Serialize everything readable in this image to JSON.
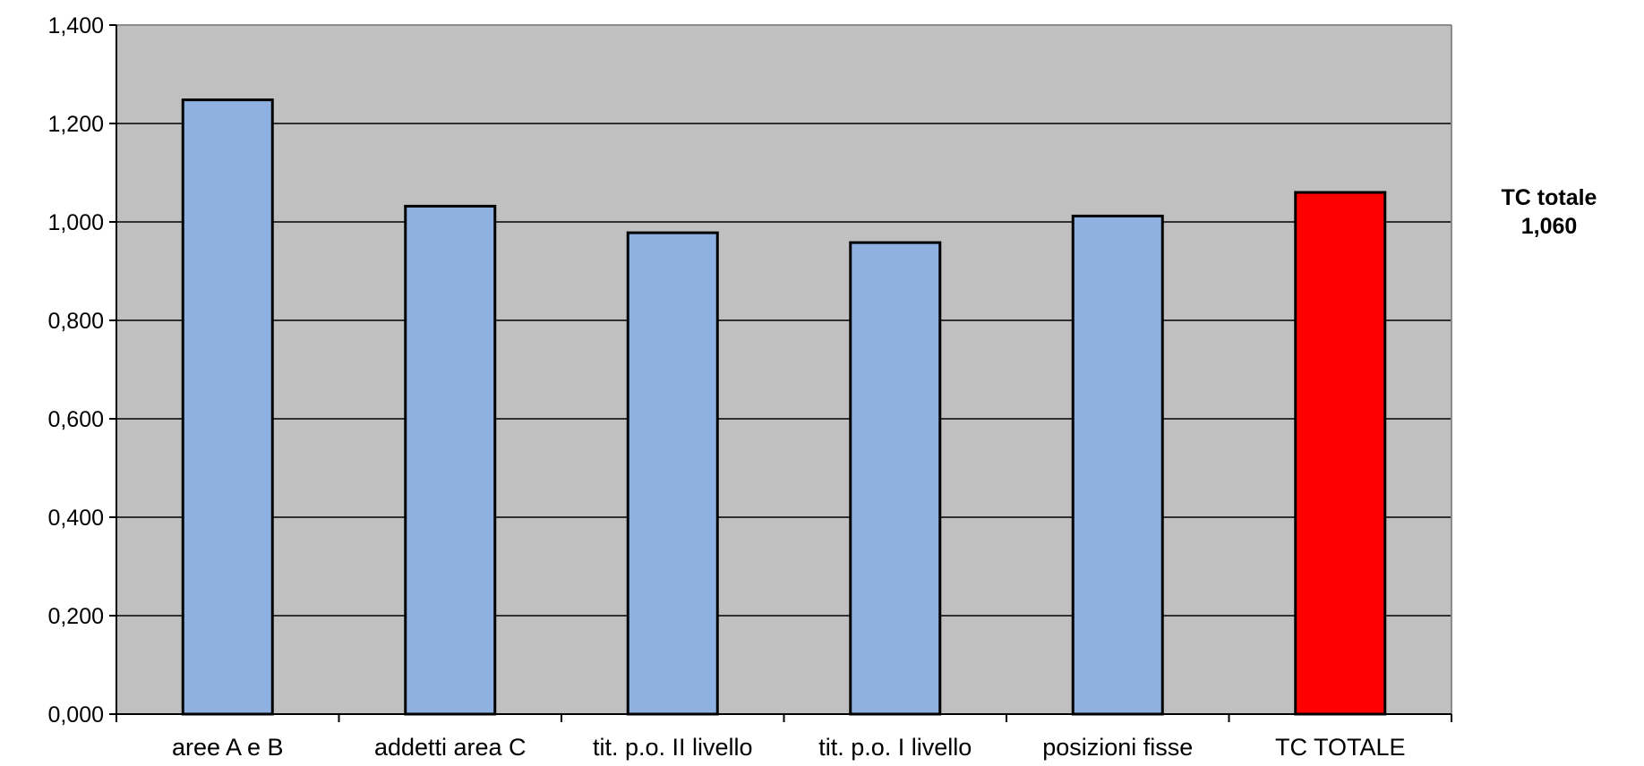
{
  "chart_data": {
    "type": "bar",
    "categories": [
      "aree A e B",
      "addetti area C",
      "tit. p.o. II livello",
      "tit. p.o. I livello",
      "posizioni fisse",
      "TC TOTALE"
    ],
    "values": [
      1.248,
      1.032,
      0.978,
      0.958,
      1.012,
      1.06
    ],
    "ylim": [
      0,
      1.4
    ],
    "yticks": [
      0,
      0.2,
      0.4,
      0.6,
      0.8,
      1.0,
      1.2,
      1.4
    ],
    "ytick_labels": [
      "0,000",
      "0,200",
      "0,400",
      "0,600",
      "0,800",
      "1,000",
      "1,200",
      "1,400"
    ],
    "grid": true,
    "colors": {
      "plot_background": "#c0c0c0",
      "bar_default": "#8eb1e1",
      "bar_highlight": "#ff0000",
      "bar_outline": "#000000",
      "gridline": "#000000"
    },
    "highlight_index": 5,
    "annotation": {
      "label": "TC totale",
      "value": "1,060"
    }
  }
}
